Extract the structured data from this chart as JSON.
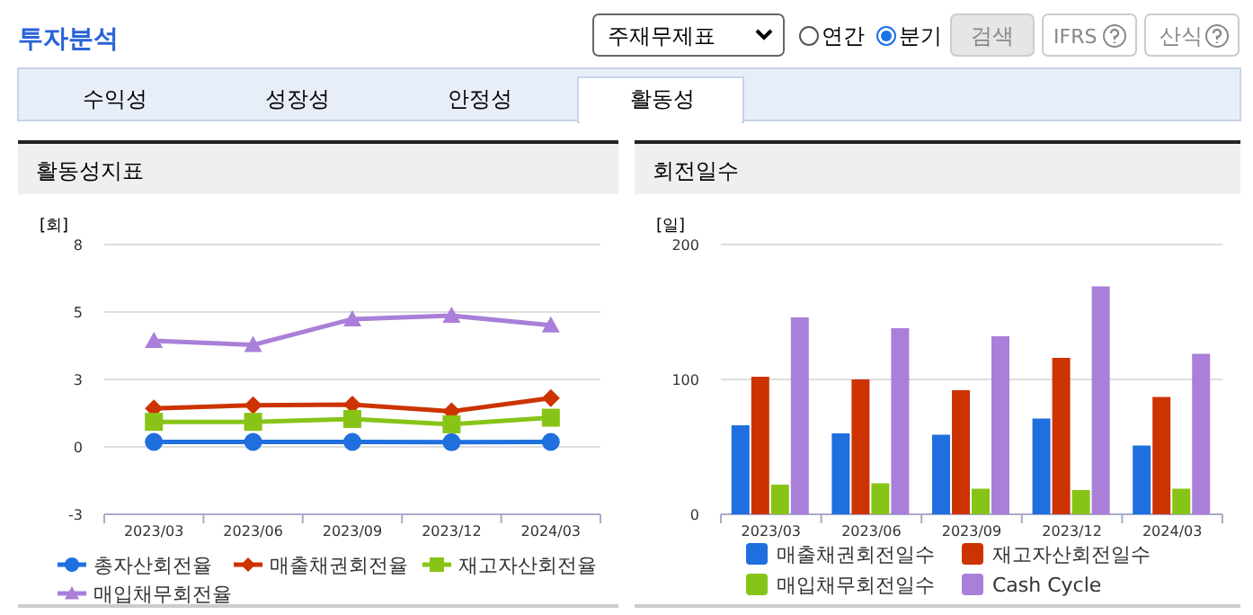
{
  "chart_data": [
    {
      "type": "other",
      "title": "투자분석",
      "annotations": [
        "주재무제표",
        "연간",
        "분기",
        "검색",
        "IFRS",
        "산식",
        "수익성",
        "성장성",
        "안정성",
        "활동성"
      ]
    },
    {
      "type": "line",
      "title": "활동성지표",
      "ylabel": "[회]",
      "categories": [
        "2023/03",
        "2023/06",
        "2023/09",
        "2023/12",
        "2024/03"
      ],
      "ylim": [
        -2.75,
        8.25
      ],
      "yticks": [
        {
          "value": -2.75,
          "label": "-3"
        },
        {
          "value": 0,
          "label": "0"
        },
        {
          "value": 2.75,
          "label": "3"
        },
        {
          "value": 5.5,
          "label": "5"
        },
        {
          "value": 8.25,
          "label": "8"
        }
      ],
      "grid": "y",
      "legend": "bottom",
      "series": [
        {
          "name": "총자산회전율",
          "color": "#1f6fde",
          "marker": "circle",
          "values": [
            0.2,
            0.2,
            0.2,
            0.19,
            0.2
          ]
        },
        {
          "name": "매출채권회전율",
          "color": "#cc3300",
          "marker": "diamond",
          "values": [
            1.57,
            1.7,
            1.72,
            1.45,
            1.99
          ]
        },
        {
          "name": "재고자산회전율",
          "color": "#88c417",
          "marker": "square",
          "values": [
            1.02,
            1.02,
            1.14,
            0.92,
            1.19
          ]
        },
        {
          "name": "매입채무회전율",
          "color": "#a97fd9",
          "marker": "triangle",
          "values": [
            4.33,
            4.16,
            5.21,
            5.35,
            4.96
          ]
        }
      ]
    },
    {
      "type": "bar",
      "title": "회전일수",
      "ylabel": "[일]",
      "categories": [
        "2023/03",
        "2023/06",
        "2023/09",
        "2023/12",
        "2024/03"
      ],
      "ylim": [
        0,
        200
      ],
      "yticks": [
        0,
        100,
        200
      ],
      "grid": "y",
      "legend": "bottom",
      "series": [
        {
          "name": "매출채권회전일수",
          "color": "#1f6fde",
          "values": [
            66,
            60,
            59,
            71,
            51
          ]
        },
        {
          "name": "재고자산회전일수",
          "color": "#cc3300",
          "values": [
            102,
            100,
            92,
            116,
            87
          ]
        },
        {
          "name": "매입채무회전일수",
          "color": "#88c417",
          "values": [
            22,
            23,
            19,
            18,
            19
          ]
        },
        {
          "name": "Cash Cycle",
          "color": "#a97fd9",
          "values": [
            146,
            138,
            132,
            169,
            119
          ]
        }
      ]
    }
  ]
}
